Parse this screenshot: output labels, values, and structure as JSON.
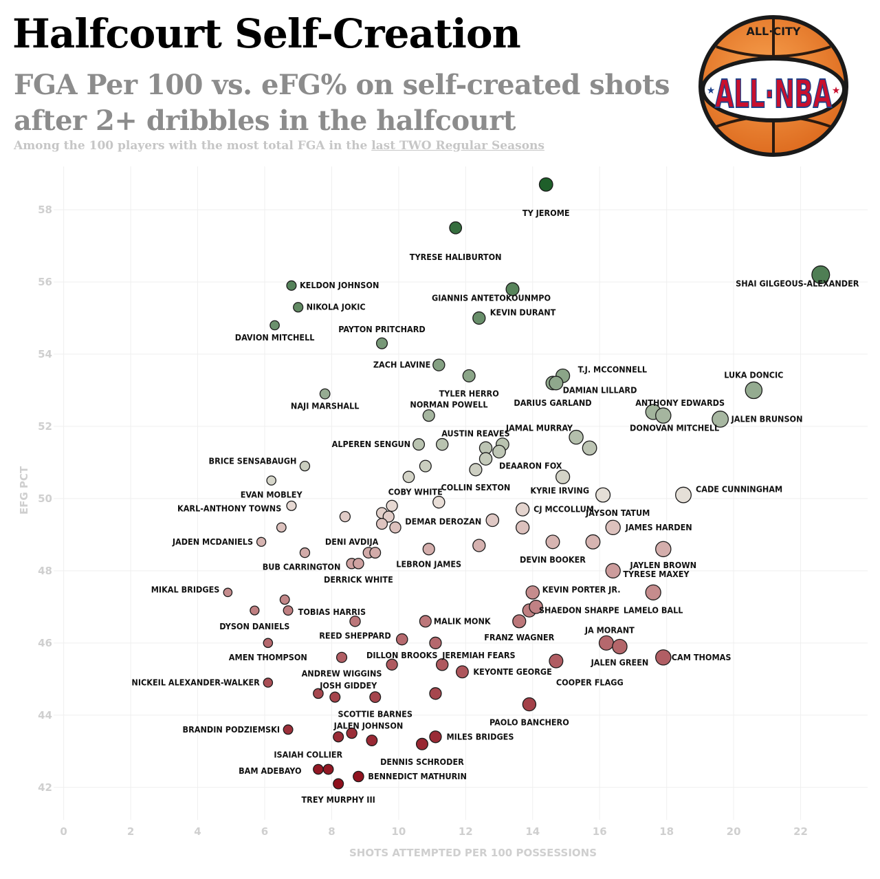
{
  "header": {
    "title": "Halfcourt Self-Creation",
    "subtitle": "FGA Per 100 vs. eFG% on self-created shots after 2+ dribbles in the halfcourt",
    "note_prefix": "Among the 100 players with the most total FGA in the ",
    "note_link": "last TWO Regular Seasons"
  },
  "logo": {
    "top_text": "ALL·CITY",
    "main_text": "ALL·NBA"
  },
  "colors": {
    "high": "#1f5f2a",
    "mid": "#ebe3dc",
    "low": "#8e0f1c",
    "grid": "#efefef",
    "tick": "#cfcfcf"
  },
  "chart_data": {
    "type": "scatter",
    "xlabel": "SHOTS ATTEMPTED PER 100 POSSESSIONS",
    "ylabel": "EFG PCT",
    "xlim": [
      -0.3,
      24
    ],
    "ylim": [
      41.1,
      59.2
    ],
    "xticks": [
      0,
      2,
      4,
      6,
      8,
      10,
      12,
      14,
      16,
      18,
      20,
      22
    ],
    "yticks": [
      42,
      44,
      46,
      48,
      50,
      52,
      54,
      56,
      58
    ],
    "grid": true,
    "legend": "none",
    "points": [
      {
        "x": 14.4,
        "y": 58.7,
        "label": "TY JEROME"
      },
      {
        "x": 11.7,
        "y": 57.5,
        "label": "TYRESE HALIBURTON"
      },
      {
        "x": 22.6,
        "y": 56.2,
        "label": "SHAI GILGEOUS-ALEXANDER"
      },
      {
        "x": 13.4,
        "y": 55.8,
        "label": "GIANNIS ANTETOKOUNMPO"
      },
      {
        "x": 6.8,
        "y": 55.9,
        "label": "KELDON JOHNSON"
      },
      {
        "x": 7.0,
        "y": 55.3,
        "label": "NIKOLA JOKIC"
      },
      {
        "x": 12.4,
        "y": 55.0,
        "label": "KEVIN DURANT"
      },
      {
        "x": 6.3,
        "y": 54.8,
        "label": "DAVION MITCHELL"
      },
      {
        "x": 9.5,
        "y": 54.3,
        "label": "PAYTON PRITCHARD"
      },
      {
        "x": 11.2,
        "y": 53.7,
        "label": "ZACH LAVINE"
      },
      {
        "x": 12.1,
        "y": 53.4,
        "label": ""
      },
      {
        "x": 14.9,
        "y": 53.4,
        "label": "T.J. MCCONNELL"
      },
      {
        "x": 14.6,
        "y": 53.2,
        "label": ""
      },
      {
        "x": 14.7,
        "y": 53.2,
        "label": ""
      },
      {
        "x": 20.6,
        "y": 53.0,
        "label": "LUKA DONCIC"
      },
      {
        "x": 7.8,
        "y": 52.9,
        "label": "NAJI MARSHALL"
      },
      {
        "x": 17.6,
        "y": 52.4,
        "label": ""
      },
      {
        "x": 17.9,
        "y": 52.3,
        "label": ""
      },
      {
        "x": 19.6,
        "y": 52.2,
        "label": "JALEN BRUNSON"
      },
      {
        "x": 10.9,
        "y": 52.3,
        "label": ""
      },
      {
        "x": 15.3,
        "y": 51.7,
        "label": ""
      },
      {
        "x": 10.6,
        "y": 51.5,
        "label": "ALPEREN SENGUN"
      },
      {
        "x": 11.3,
        "y": 51.5,
        "label": ""
      },
      {
        "x": 12.6,
        "y": 51.4,
        "label": ""
      },
      {
        "x": 13.1,
        "y": 51.5,
        "label": ""
      },
      {
        "x": 13.0,
        "y": 51.3,
        "label": ""
      },
      {
        "x": 15.7,
        "y": 51.4,
        "label": ""
      },
      {
        "x": 12.6,
        "y": 51.1,
        "label": ""
      },
      {
        "x": 10.8,
        "y": 50.9,
        "label": ""
      },
      {
        "x": 7.2,
        "y": 50.9,
        "label": "BRICE SENSABAUGH"
      },
      {
        "x": 12.3,
        "y": 50.8,
        "label": ""
      },
      {
        "x": 10.3,
        "y": 50.6,
        "label": ""
      },
      {
        "x": 14.9,
        "y": 50.6,
        "label": ""
      },
      {
        "x": 6.2,
        "y": 50.5,
        "label": ""
      },
      {
        "x": 16.1,
        "y": 50.1,
        "label": "KYRIE IRVING"
      },
      {
        "x": 18.5,
        "y": 50.1,
        "label": "CADE CUNNINGHAM"
      },
      {
        "x": 11.2,
        "y": 49.9,
        "label": ""
      },
      {
        "x": 9.8,
        "y": 49.8,
        "label": ""
      },
      {
        "x": 6.8,
        "y": 49.8,
        "label": ""
      },
      {
        "x": 9.5,
        "y": 49.6,
        "label": ""
      },
      {
        "x": 8.4,
        "y": 49.5,
        "label": ""
      },
      {
        "x": 9.7,
        "y": 49.5,
        "label": ""
      },
      {
        "x": 13.7,
        "y": 49.7,
        "label": "CJ MCCOLLUM"
      },
      {
        "x": 12.8,
        "y": 49.4,
        "label": "DEMAR DEROZAN"
      },
      {
        "x": 9.5,
        "y": 49.3,
        "label": ""
      },
      {
        "x": 9.9,
        "y": 49.2,
        "label": ""
      },
      {
        "x": 13.7,
        "y": 49.2,
        "label": ""
      },
      {
        "x": 16.4,
        "y": 49.2,
        "label": "JAMES HARDEN"
      },
      {
        "x": 6.5,
        "y": 49.2,
        "label": ""
      },
      {
        "x": 5.9,
        "y": 48.8,
        "label": "JADEN MCDANIELS"
      },
      {
        "x": 15.8,
        "y": 48.8,
        "label": ""
      },
      {
        "x": 14.6,
        "y": 48.8,
        "label": "DEVIN BOOKER"
      },
      {
        "x": 12.4,
        "y": 48.7,
        "label": ""
      },
      {
        "x": 17.9,
        "y": 48.6,
        "label": ""
      },
      {
        "x": 10.9,
        "y": 48.6,
        "label": "LEBRON JAMES"
      },
      {
        "x": 7.2,
        "y": 48.5,
        "label": ""
      },
      {
        "x": 9.1,
        "y": 48.5,
        "label": ""
      },
      {
        "x": 9.3,
        "y": 48.5,
        "label": ""
      },
      {
        "x": 8.6,
        "y": 48.2,
        "label": ""
      },
      {
        "x": 8.8,
        "y": 48.2,
        "label": ""
      },
      {
        "x": 16.4,
        "y": 48.0,
        "label": ""
      },
      {
        "x": 4.9,
        "y": 47.4,
        "label": "MIKAL BRIDGES"
      },
      {
        "x": 14.0,
        "y": 47.4,
        "label": "KEVIN PORTER JR."
      },
      {
        "x": 17.6,
        "y": 47.4,
        "label": ""
      },
      {
        "x": 6.6,
        "y": 47.2,
        "label": ""
      },
      {
        "x": 6.7,
        "y": 46.9,
        "label": ""
      },
      {
        "x": 13.9,
        "y": 46.9,
        "label": "SHAEDON SHARPE"
      },
      {
        "x": 14.1,
        "y": 47.0,
        "label": ""
      },
      {
        "x": 5.7,
        "y": 46.9,
        "label": ""
      },
      {
        "x": 10.8,
        "y": 46.6,
        "label": "MALIK MONK"
      },
      {
        "x": 8.7,
        "y": 46.6,
        "label": ""
      },
      {
        "x": 13.6,
        "y": 46.6,
        "label": ""
      },
      {
        "x": 10.1,
        "y": 46.1,
        "label": ""
      },
      {
        "x": 11.1,
        "y": 46.0,
        "label": ""
      },
      {
        "x": 6.1,
        "y": 46.0,
        "label": ""
      },
      {
        "x": 16.2,
        "y": 46.0,
        "label": ""
      },
      {
        "x": 16.6,
        "y": 45.9,
        "label": ""
      },
      {
        "x": 8.3,
        "y": 45.6,
        "label": ""
      },
      {
        "x": 17.9,
        "y": 45.6,
        "label": "CAM THOMAS"
      },
      {
        "x": 14.7,
        "y": 45.5,
        "label": ""
      },
      {
        "x": 9.8,
        "y": 45.4,
        "label": ""
      },
      {
        "x": 11.3,
        "y": 45.4,
        "label": ""
      },
      {
        "x": 11.9,
        "y": 45.2,
        "label": "KEYONTE GEORGE"
      },
      {
        "x": 6.1,
        "y": 44.9,
        "label": "NICKEIL ALEXANDER-WALKER"
      },
      {
        "x": 7.6,
        "y": 44.6,
        "label": ""
      },
      {
        "x": 8.1,
        "y": 44.5,
        "label": ""
      },
      {
        "x": 9.3,
        "y": 44.5,
        "label": ""
      },
      {
        "x": 11.1,
        "y": 44.6,
        "label": ""
      },
      {
        "x": 13.9,
        "y": 44.3,
        "label": ""
      },
      {
        "x": 6.7,
        "y": 43.6,
        "label": "BRANDIN PODZIEMSKI"
      },
      {
        "x": 8.2,
        "y": 43.4,
        "label": ""
      },
      {
        "x": 8.6,
        "y": 43.5,
        "label": ""
      },
      {
        "x": 9.2,
        "y": 43.3,
        "label": ""
      },
      {
        "x": 11.1,
        "y": 43.4,
        "label": "MILES BRIDGES"
      },
      {
        "x": 10.7,
        "y": 43.2,
        "label": ""
      },
      {
        "x": 7.6,
        "y": 42.5,
        "label": ""
      },
      {
        "x": 7.9,
        "y": 42.5,
        "label": ""
      },
      {
        "x": 8.8,
        "y": 42.3,
        "label": "BENNEDICT MATHURIN"
      },
      {
        "x": 8.2,
        "y": 42.1,
        "label": ""
      }
    ],
    "annotations": [
      {
        "text": "TYLER HERRO",
        "x": 12.1,
        "y": 52.9,
        "anchor": "middle"
      },
      {
        "text": "DAMIAN LILLARD",
        "x": 14.9,
        "y": 53.0,
        "anchor": "start"
      },
      {
        "text": "DARIUS GARLAND",
        "x": 14.6,
        "y": 52.65,
        "anchor": "middle"
      },
      {
        "text": "ANTHONY EDWARDS",
        "x": 18.4,
        "y": 52.65,
        "anchor": "middle"
      },
      {
        "text": "NORMAN POWELL",
        "x": 11.5,
        "y": 52.6,
        "anchor": "middle"
      },
      {
        "text": "JAMAL MURRAY",
        "x": 14.2,
        "y": 51.95,
        "anchor": "middle"
      },
      {
        "text": "DONOVAN MITCHELL",
        "x": 16.9,
        "y": 51.95,
        "anchor": "start"
      },
      {
        "text": "AUSTIN REAVES",
        "x": 12.3,
        "y": 51.8,
        "anchor": "middle"
      },
      {
        "text": "DEAARON FOX",
        "x": 13.0,
        "y": 50.9,
        "anchor": "start"
      },
      {
        "text": "COLLIN SEXTON",
        "x": 12.3,
        "y": 50.3,
        "anchor": "middle"
      },
      {
        "text": "COBY WHITE",
        "x": 10.5,
        "y": 50.18,
        "anchor": "middle"
      },
      {
        "text": "EVAN MOBLEY",
        "x": 6.2,
        "y": 50.1,
        "anchor": "middle"
      },
      {
        "text": "KARL-ANTHONY TOWNS",
        "x": 6.5,
        "y": 49.72,
        "anchor": "end"
      },
      {
        "text": "JAYSON TATUM",
        "x": 17.5,
        "y": 49.6,
        "anchor": "end"
      },
      {
        "text": "DENI AVDIJA",
        "x": 8.6,
        "y": 48.8,
        "anchor": "middle"
      },
      {
        "text": "BUB CARRINGTON",
        "x": 7.1,
        "y": 48.1,
        "anchor": "middle"
      },
      {
        "text": "DERRICK WHITE",
        "x": 8.8,
        "y": 47.75,
        "anchor": "middle"
      },
      {
        "text": "JAYLEN BROWN",
        "x": 17.9,
        "y": 48.15,
        "anchor": "middle"
      },
      {
        "text": "TYRESE MAXEY",
        "x": 16.7,
        "y": 47.9,
        "anchor": "start"
      },
      {
        "text": "LAMELO BALL",
        "x": 17.6,
        "y": 46.9,
        "anchor": "middle"
      },
      {
        "text": "TOBIAS HARRIS",
        "x": 7.0,
        "y": 46.85,
        "anchor": "start"
      },
      {
        "text": "DYSON DANIELS",
        "x": 5.7,
        "y": 46.45,
        "anchor": "middle"
      },
      {
        "text": "REED SHEPPARD",
        "x": 8.7,
        "y": 46.2,
        "anchor": "middle"
      },
      {
        "text": "FRANZ WAGNER",
        "x": 13.6,
        "y": 46.15,
        "anchor": "middle"
      },
      {
        "text": "JA MORANT",
        "x": 16.3,
        "y": 46.35,
        "anchor": "middle"
      },
      {
        "text": "AMEN THOMPSON",
        "x": 6.1,
        "y": 45.6,
        "anchor": "middle"
      },
      {
        "text": "DILLON BROOKS",
        "x": 10.1,
        "y": 45.65,
        "anchor": "middle"
      },
      {
        "text": "JEREMIAH FEARS",
        "x": 11.3,
        "y": 45.65,
        "anchor": "start"
      },
      {
        "text": "JALEN GREEN",
        "x": 16.6,
        "y": 45.45,
        "anchor": "middle"
      },
      {
        "text": "ANDREW WIGGINS",
        "x": 8.3,
        "y": 45.15,
        "anchor": "middle"
      },
      {
        "text": "COOPER FLAGG",
        "x": 14.7,
        "y": 44.9,
        "anchor": "start"
      },
      {
        "text": "JOSH GIDDEY",
        "x": 8.5,
        "y": 44.82,
        "anchor": "middle"
      },
      {
        "text": "SCOTTIE BARNES",
        "x": 9.3,
        "y": 44.02,
        "anchor": "middle"
      },
      {
        "text": "JALEN JOHNSON",
        "x": 9.1,
        "y": 43.7,
        "anchor": "middle"
      },
      {
        "text": "PAOLO BANCHERO",
        "x": 13.9,
        "y": 43.8,
        "anchor": "middle"
      },
      {
        "text": "ISAIAH COLLIER",
        "x": 7.3,
        "y": 42.9,
        "anchor": "middle"
      },
      {
        "text": "DENNIS SCHRODER",
        "x": 10.7,
        "y": 42.7,
        "anchor": "middle"
      },
      {
        "text": "BAM ADEBAYO",
        "x": 7.1,
        "y": 42.45,
        "anchor": "end"
      },
      {
        "text": "TREY MURPHY III",
        "x": 8.2,
        "y": 41.65,
        "anchor": "middle"
      }
    ]
  }
}
